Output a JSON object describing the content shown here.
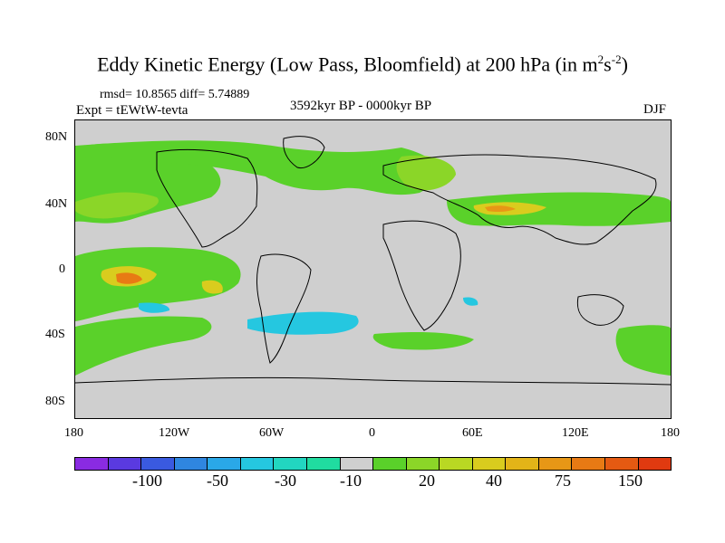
{
  "title": {
    "main": "Eddy Kinetic Energy (Low Pass, Bloomfield) at 200 hPa (in m",
    "sup1": "2",
    "mid": "s",
    "sup2": "-2",
    "end": ")"
  },
  "stats": "rmsd= 10.8565  diff= 5.74889",
  "experiment": "Expt = tEWtW-tevta",
  "period": "3592kyr BP - 0000kyr BP",
  "season": "DJF",
  "y_axis_labels": [
    "80N",
    "40N",
    "0",
    "40S",
    "80S"
  ],
  "x_axis_labels": [
    "180",
    "120W",
    "60W",
    "0",
    "60E",
    "120E",
    "180"
  ],
  "colorbar": {
    "colors": [
      "#8a2be2",
      "#5a3ae0",
      "#3a5ae0",
      "#2f86e0",
      "#2aa8e8",
      "#25c7e0",
      "#22d6c0",
      "#20dca0",
      "#cfcfcf",
      "#5ad12a",
      "#8bd628",
      "#b9d823",
      "#d9cc1e",
      "#e3b418",
      "#e79716",
      "#e87a14",
      "#e55a12",
      "#e03a10"
    ],
    "labels": [
      "-100",
      "-50",
      "-30",
      "-10",
      "20",
      "40",
      "75",
      "150"
    ]
  },
  "map": {
    "background_color": "#cfcfcf",
    "coast_color": "#000000"
  }
}
